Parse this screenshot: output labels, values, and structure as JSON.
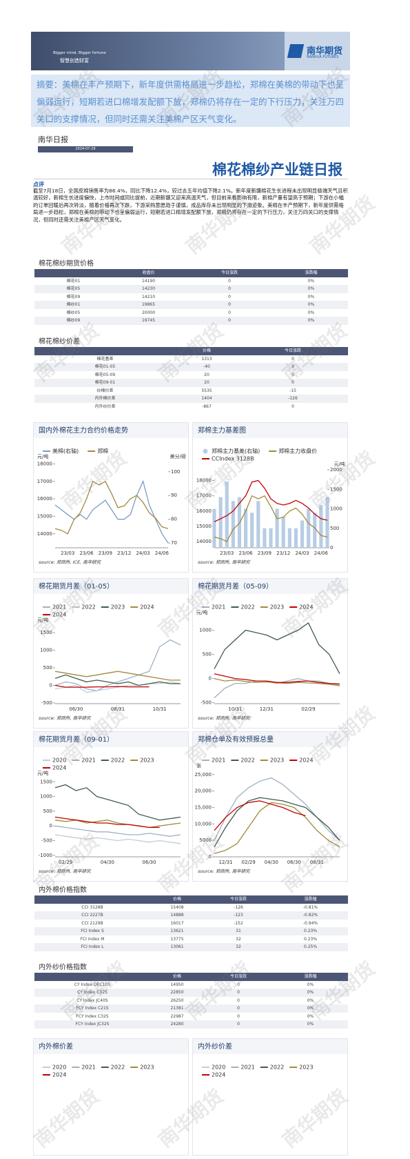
{
  "header": {
    "slogan_en": "Bigger mind, Bigger fortune",
    "slogan_cn": "智慧创造财富",
    "logo_cn": "南华期货",
    "logo_en": "NANHUA FUTURES"
  },
  "summary": "摘要：美棉在丰产预期下，新年度供需格局进一步趋松，郑棉在美棉的带动下也呈偏弱运行，短期若进口棉增发配额下放，郑棉仍将存在一定的下行压力，关注万四关口的支撑情况，但同时还需关注美棉产区天气变化。",
  "report": {
    "label": "南华日报",
    "date": "2024-07-29",
    "title": "棉花棉纱产业链日报"
  },
  "comment": {
    "label": "点评",
    "text": "截至7月18日，全国皮棉销售率为86.4%，同比下降12.4%，较过去五年均值下降2.1%。新年度新疆棉花生长进程未出现明显极端天气且积温较好，新棉生长进度偏快，上市时间或同比提前，近期新疆又迎来高温天气，但目前来看影响有限，新棉产量有望高于预期；下游在小幅的订单回暖后再次转淡，随着价格再次下跌，下游采购意愿趋于谨慎，成品库存未出现明显的下滑迹象。美棉在丰产预期下，新年度供需格局进一步趋松，郑棉在美棉的带动下也呈偏弱运行，短期若进口棉增发配额下放，郑棉仍将存在一定的下行压力，关注万四关口的支撑情况，但同时还需关注美棉产区天气变化。"
  },
  "tables": [
    {
      "title": "棉花棉纱期货价格",
      "columns": [
        "收盘价",
        "今日涨跌",
        "涨跌幅"
      ],
      "rows": [
        [
          "棉花01",
          "14190",
          "0",
          "0%"
        ],
        [
          "棉花05",
          "14230",
          "0",
          "0%"
        ],
        [
          "棉花09",
          "14210",
          "0",
          "0%"
        ],
        [
          "棉纱01",
          "19865",
          "0",
          "0%"
        ],
        [
          "棉纱05",
          "20000",
          "0",
          "0%"
        ],
        [
          "棉纱09",
          "19745",
          "0",
          "0%"
        ]
      ]
    },
    {
      "title": "棉花棉纱价差",
      "columns": [
        "价格",
        "今日涨跌"
      ],
      "rows": [
        [
          "棉花基差",
          "1313",
          "0"
        ],
        [
          "棉花01-05",
          "-40",
          "0"
        ],
        [
          "棉花05-09",
          "20",
          "0"
        ],
        [
          "棉花09-01",
          "20",
          "0"
        ],
        [
          "纱棉价差",
          "5535",
          "-15"
        ],
        [
          "内外棉价差",
          "1404",
          "-126"
        ],
        [
          "内外纱价差",
          "-867",
          "0"
        ]
      ]
    },
    {
      "title": "内外棉价格指数",
      "columns": [
        "价格",
        "今日涨跌",
        "涨跌幅"
      ],
      "rows": [
        [
          "CCI 3128B",
          "15408",
          "-126",
          "-0.81%"
        ],
        [
          "CCI 2227B",
          "14888",
          "-123",
          "-0.82%"
        ],
        [
          "CCI 2129B",
          "16017",
          "-152",
          "-0.94%"
        ],
        [
          "FCI Index S",
          "13621",
          "31",
          "0.23%"
        ],
        [
          "FCI Index M",
          "13775",
          "32",
          "0.23%"
        ],
        [
          "FCI Index L",
          "13061",
          "32",
          "0.25%"
        ]
      ]
    },
    {
      "title": "内外纱价格指数",
      "columns": [
        "价格",
        "今日涨跌",
        "涨跌幅"
      ],
      "rows": [
        [
          "CY Index OEC10S",
          "14950",
          "0",
          "0%"
        ],
        [
          "CY Index C32S",
          "22850",
          "0",
          "0%"
        ],
        [
          "CY Index JC40S",
          "26250",
          "0",
          "0%"
        ],
        [
          "FCY Index C21S",
          "21381",
          "0",
          "0%"
        ],
        [
          "FCY Index C32S",
          "22987",
          "0",
          "0%"
        ],
        [
          "FCY Index JC32S",
          "24280",
          "0",
          "0%"
        ]
      ]
    }
  ],
  "chart_data": [
    {
      "type": "line",
      "title": "国内外棉花主力合约价格走势",
      "y_unit": "元/吨",
      "y2_unit": "美分/磅",
      "categories": [
        null,
        null,
        "23/03",
        null,
        null,
        "23/06",
        null,
        null,
        "23/09",
        null,
        null,
        "23/12",
        null,
        null,
        "24/03",
        null,
        null,
        "24/06",
        null
      ],
      "ylim": [
        13200,
        18100
      ],
      "yticks": [
        14000,
        15000,
        16000,
        17000,
        18000
      ],
      "y2lim": [
        68,
        104
      ],
      "y2ticks": [
        70,
        80,
        90,
        100
      ],
      "series": [
        {
          "name": "美棉(右轴)",
          "color": "#7b9cc4",
          "axis": "y2",
          "values": [
            86,
            84,
            82,
            80,
            82,
            80,
            84,
            86,
            88,
            84,
            80,
            80,
            82,
            90,
            96,
            86,
            80,
            74,
            70
          ]
        },
        {
          "name": "郑棉",
          "color": "#a08a3c",
          "values": [
            14300,
            14200,
            14000,
            14800,
            15200,
            16000,
            17000,
            16800,
            17000,
            16300,
            15500,
            15600,
            16000,
            16200,
            15800,
            15200,
            14900,
            14400,
            14300
          ]
        }
      ],
      "source": "source: 郑商所, ICE, 南华研究"
    },
    {
      "type": "line",
      "title": "郑棉主力基差图",
      "y2_unit": "元/吨",
      "categories": [
        null,
        null,
        "23/03",
        null,
        null,
        "23/06",
        null,
        null,
        "23/09",
        null,
        null,
        "23/12",
        null,
        null,
        "24/03",
        null,
        null,
        "24/06",
        null
      ],
      "ylim": [
        13600,
        18700
      ],
      "yticks": [
        14000,
        15000,
        16000,
        17000,
        18000
      ],
      "y2lim": [
        0,
        2000
      ],
      "y2ticks": [
        0,
        500,
        1000,
        1500,
        2000
      ],
      "series": [
        {
          "name": "郑棉主力基差(右轴)",
          "color": "#b8cde4",
          "kind": "bar",
          "axis": "y2",
          "values": [
            1000,
            1300,
            1700,
            1200,
            1300,
            1000,
            900,
            1200,
            500,
            500,
            1000,
            800,
            500,
            500,
            700,
            1000,
            900,
            1100,
            1300
          ]
        },
        {
          "name": "郑棉主力收盘价",
          "color": "#a08a3c",
          "values": [
            14300,
            14200,
            14000,
            14800,
            15200,
            16000,
            17000,
            16800,
            17000,
            16300,
            15500,
            15600,
            16000,
            16200,
            15800,
            15200,
            14900,
            14400,
            14300
          ]
        },
        {
          "name": "CCIndex 3128B",
          "color": "#c00000",
          "values": [
            15300,
            15500,
            15700,
            16000,
            16500,
            17000,
            17900,
            18000,
            17500,
            16800,
            16500,
            16400,
            16500,
            16700,
            16500,
            16200,
            15800,
            15500,
            15400
          ]
        }
      ],
      "source": "source: 郑商所, 南华研究"
    },
    {
      "type": "line",
      "title": "棉花期货月差（01-05）",
      "y_unit": "元/吨",
      "categories": [
        null,
        null,
        "06/30",
        null,
        null,
        null,
        "08/31",
        null,
        null,
        null,
        "10/31",
        null,
        null
      ],
      "ylim": [
        -520,
        1700
      ],
      "yticks": [
        -500,
        0,
        500,
        1000,
        1500
      ],
      "series": [
        {
          "name": "2021",
          "color": "#9fb0c2",
          "values": [
            0,
            100,
            50,
            -100,
            -150,
            0,
            100,
            200,
            300,
            400,
            1100,
            1300,
            1150
          ]
        },
        {
          "name": "2022",
          "color": "#c2ccd8",
          "values": [
            -100,
            -50,
            0,
            -200,
            -150,
            -100,
            -50,
            0,
            0,
            50,
            50,
            100,
            50
          ]
        },
        {
          "name": "2023",
          "color": "#3f5a4e",
          "values": [
            200,
            300,
            200,
            100,
            150,
            100,
            50,
            100,
            0,
            50,
            100,
            50,
            50
          ]
        },
        {
          "name": "2024",
          "color": "#a08a3c",
          "values": [
            400,
            350,
            300,
            250,
            300,
            350,
            400,
            350,
            300,
            250,
            200,
            150,
            150
          ]
        },
        {
          "name": "2024",
          "color": "#c00000",
          "values": [
            0,
            -50,
            -50,
            -50,
            -40,
            -40,
            -30,
            -40,
            -40,
            -40,
            null,
            null,
            null
          ]
        }
      ],
      "source": "source: 郑商所, 南华研究"
    },
    {
      "type": "line",
      "title": "棉花期货月差（05-09）",
      "y_unit": "元/吨",
      "categories": [
        null,
        null,
        "10/31",
        null,
        null,
        "12/31",
        null,
        null,
        null,
        "02/29",
        null,
        null,
        null
      ],
      "ylim": [
        -520,
        1250
      ],
      "yticks": [
        -500,
        0,
        500,
        1000
      ],
      "series": [
        {
          "name": "2021",
          "color": "#9fb0c2",
          "values": [
            -400,
            -200,
            -100,
            -100,
            -50,
            -50,
            -100,
            -50,
            0,
            -50,
            -50,
            -100,
            -100
          ]
        },
        {
          "name": "2022",
          "color": "#3f5a4e",
          "values": [
            200,
            600,
            800,
            1000,
            950,
            900,
            800,
            900,
            1000,
            1150,
            700,
            500,
            100
          ]
        },
        {
          "name": "2023",
          "color": "#a08a3c",
          "values": [
            0,
            -50,
            -30,
            -60,
            -80,
            -70,
            -90,
            -100,
            -80,
            -90,
            -100,
            -120,
            -150
          ]
        },
        {
          "name": "2024",
          "color": "#c00000",
          "values": [
            100,
            50,
            0,
            -20,
            -50,
            -50,
            -80,
            -80,
            -60,
            -50,
            -80,
            -100,
            -120
          ]
        }
      ],
      "source": "source: 郑商所, 南华研究"
    },
    {
      "type": "line",
      "title": "棉花期货月差（09-01）",
      "y_unit": "元/吨",
      "categories": [
        null,
        "02/29",
        null,
        null,
        null,
        "04/30",
        null,
        null,
        null,
        "06/30",
        null,
        null,
        null
      ],
      "ylim": [
        -1050,
        1600
      ],
      "yticks": [
        -1000,
        -500,
        0,
        500,
        1000,
        1500
      ],
      "series": [
        {
          "name": "2020",
          "color": "#c2ccd8",
          "values": [
            -300,
            -350,
            -400,
            -450,
            -400,
            -450,
            -500,
            -450,
            -500,
            -550,
            -500,
            -550,
            -600
          ]
        },
        {
          "name": "2021",
          "color": "#9fb0c2",
          "values": [
            0,
            -50,
            -100,
            -150,
            -200,
            -200,
            -250,
            -300,
            -300,
            -250,
            -300,
            -350,
            -300
          ]
        },
        {
          "name": "2022",
          "color": "#3f5a4e",
          "values": [
            1300,
            1400,
            1200,
            1300,
            1000,
            900,
            800,
            700,
            400,
            300,
            200,
            250,
            300
          ]
        },
        {
          "name": "2023",
          "color": "#a08a3c",
          "values": [
            200,
            150,
            200,
            100,
            150,
            200,
            100,
            50,
            0,
            -50,
            0,
            50,
            100
          ]
        },
        {
          "name": "2024",
          "color": "#c00000",
          "values": [
            300,
            250,
            200,
            150,
            100,
            100,
            50,
            50,
            0,
            -50,
            -50,
            null,
            null
          ]
        }
      ],
      "source": "source: 郑商所, 南华研究"
    },
    {
      "type": "line",
      "title": "郑棉仓单及有效预报总量",
      "y_unit": "张",
      "categories": [
        null,
        "12/31",
        null,
        "02/29",
        null,
        "04/30",
        null,
        "06/30",
        null,
        "08/31",
        null,
        null
      ],
      "ylim": [
        0,
        26000
      ],
      "yticks": [
        0,
        5000,
        {
          "value": 10000,
          "label": "10,000"
        },
        {
          "value": 15000,
          "label": "15,000"
        },
        {
          "value": 20000,
          "label": "20,000"
        },
        {
          "value": 25000,
          "label": "25,000"
        }
      ],
      "series": [
        {
          "name": "2021",
          "color": "#9fb0c2",
          "values": [
            5000,
            12000,
            18000,
            21000,
            23000,
            24000,
            22000,
            19000,
            16000,
            12000,
            8000,
            5000
          ]
        },
        {
          "name": "2022",
          "color": "#3f5a4e",
          "values": [
            3000,
            9000,
            14000,
            17000,
            18000,
            17500,
            17000,
            16000,
            15000,
            12000,
            9000,
            5000
          ]
        },
        {
          "name": "2023",
          "color": "#a08a3c",
          "values": [
            1000,
            2000,
            4000,
            9000,
            14000,
            16500,
            16000,
            15000,
            12000,
            8000,
            5000,
            3000
          ]
        },
        {
          "name": "2024",
          "color": "#c00000",
          "values": [
            8000,
            12000,
            15000,
            16500,
            17000,
            16000,
            15000,
            13500,
            12500,
            null,
            null,
            null
          ]
        }
      ],
      "source": "source: 郑商所, 南华研究"
    },
    {
      "type": "line",
      "title": "内外棉价差",
      "series": [
        {
          "name": "2020",
          "color": "#c2ccd8"
        },
        {
          "name": "2021",
          "color": "#9fb0c2"
        },
        {
          "name": "2022",
          "color": "#3f5a4e"
        },
        {
          "name": "2023",
          "color": "#a08a3c"
        },
        {
          "name": "2024",
          "color": "#c00000"
        }
      ]
    },
    {
      "type": "line",
      "title": "内外纱价差",
      "series": [
        {
          "name": "2020",
          "color": "#c2ccd8"
        },
        {
          "name": "2021",
          "color": "#9fb0c2"
        },
        {
          "name": "2022",
          "color": "#3f5a4e"
        },
        {
          "name": "2023",
          "color": "#a08a3c"
        },
        {
          "name": "2024",
          "color": "#c00000"
        }
      ]
    }
  ],
  "watermark": "南华期货"
}
